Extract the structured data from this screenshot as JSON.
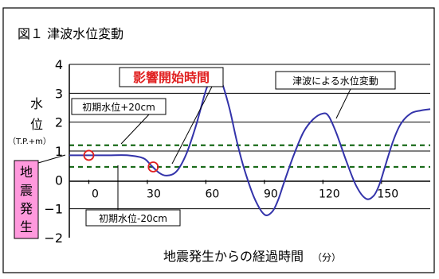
{
  "title": "図１ 津波水位変動",
  "chart_data": {
    "type": "line",
    "xlabel": "地震発生からの経過時間",
    "xlabel_unit": "（分）",
    "ylabel": [
      "水",
      "位"
    ],
    "ylabel_unit": "（T.P.+m）",
    "xlim": [
      -10,
      175
    ],
    "ylim": [
      -2,
      4
    ],
    "x_ticks": [
      0,
      30,
      60,
      90,
      120,
      150
    ],
    "x_tick_labels": [
      "0",
      "30",
      "60",
      "90",
      "120",
      "150"
    ],
    "y_ticks": [
      -2,
      -1,
      0,
      1,
      2,
      3,
      4
    ],
    "y_tick_labels": [
      "−2",
      "−1",
      "0",
      "1",
      "2",
      "3",
      "4"
    ],
    "grid": "horizontal",
    "series": [
      {
        "name": "津波による水位変動",
        "color": "#3333aa",
        "x": [
          -10,
          0,
          10,
          20,
          28,
          32,
          36,
          40,
          45,
          50,
          55,
          60,
          63,
          65,
          68,
          72,
          76,
          80,
          85,
          90,
          94,
          97,
          100,
          105,
          110,
          115,
          120,
          123,
          127,
          132,
          137,
          142,
          146,
          149,
          152,
          156,
          160,
          165,
          170,
          175
        ],
        "y": [
          0.85,
          0.85,
          0.85,
          0.85,
          0.75,
          0.5,
          0.25,
          0.15,
          0.3,
          0.9,
          1.9,
          3.1,
          3.55,
          3.6,
          3.4,
          2.5,
          1.3,
          0.3,
          -0.65,
          -1.2,
          -1.1,
          -0.7,
          -0.1,
          0.85,
          1.65,
          2.1,
          2.3,
          2.2,
          1.6,
          0.65,
          -0.2,
          -0.65,
          -0.55,
          -0.15,
          0.5,
          1.35,
          1.95,
          2.3,
          2.4,
          2.45
        ]
      }
    ],
    "reference_lines": [
      {
        "y": 1.2,
        "label": "初期水位+20cm",
        "color": "#1a6b1a",
        "style": "dashed"
      },
      {
        "y": 0.45,
        "label": "初期水位-20cm",
        "color": "#1a6b1a",
        "style": "dashed"
      }
    ],
    "markers": [
      {
        "x": 0,
        "y": 0.85,
        "color": "#e02020"
      },
      {
        "x": 33,
        "y": 0.45,
        "color": "#e02020"
      }
    ],
    "annotations": {
      "start_time": "影響開始時間",
      "event": [
        "地",
        "震",
        "発",
        "生"
      ],
      "series_label": "津波による水位変動"
    },
    "colors": {
      "event_box_fill": "#ff99dd",
      "start_time_text": "#e02020",
      "grid": "#000000"
    }
  }
}
